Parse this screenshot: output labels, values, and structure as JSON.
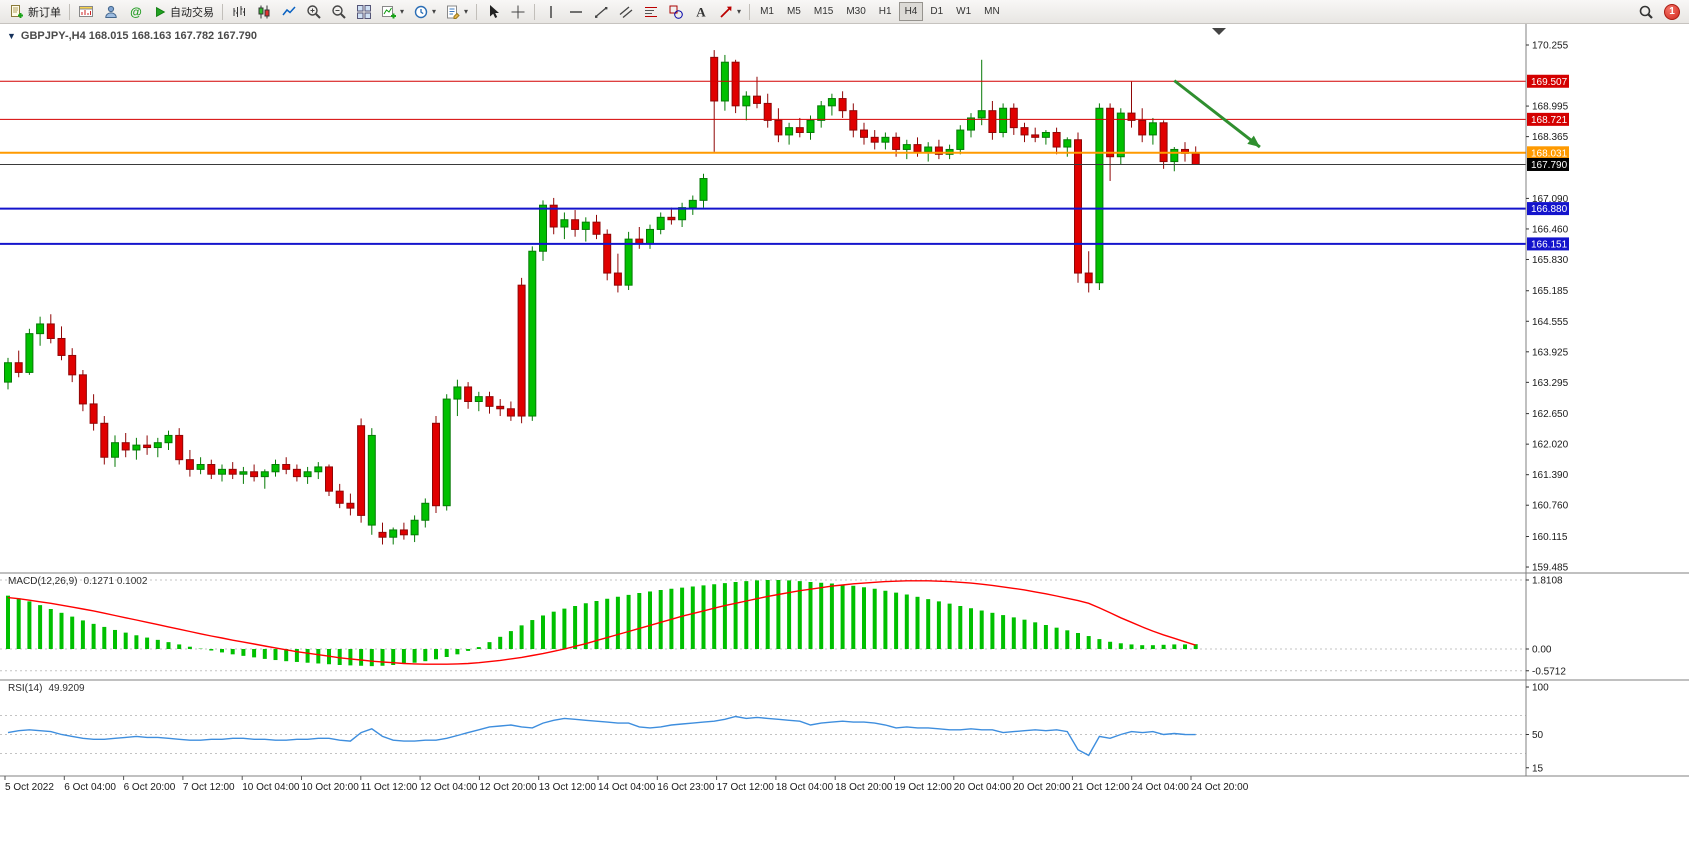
{
  "toolbar": {
    "new_order_label": "新订单",
    "autotrade_label": "自动交易",
    "timeframes": [
      "M1",
      "M5",
      "M15",
      "M30",
      "H1",
      "H4",
      "D1",
      "W1",
      "MN"
    ],
    "active_timeframe": "H4",
    "notification_count": "1"
  },
  "labels": {
    "symbol_line": "GBPJPY-,H4  168.015 168.163 167.782 167.790",
    "macd_name": "MACD(12,26,9)",
    "macd_values": "0.1271 0.1002",
    "rsi_name": "RSI(14)",
    "rsi_value": "49.9209"
  },
  "chart_data": [
    {
      "type": "candlestick",
      "symbol": "GBPJPY-",
      "timeframe": "H4",
      "current_ohlc": {
        "open": 168.015,
        "high": 168.163,
        "low": 167.782,
        "close": 167.79
      },
      "up_color": "#00C000",
      "up_border": "#067A06",
      "down_color": "#E00000",
      "down_border": "#8F0606",
      "y_axis_ticks": [
        "170.255",
        "168.995",
        "168.365",
        "167.090",
        "166.460",
        "165.830",
        "165.185",
        "164.555",
        "163.925",
        "163.295",
        "162.650",
        "162.020",
        "161.390",
        "160.760",
        "160.115",
        "159.485"
      ],
      "x_labels": [
        "5 Oct 2022",
        "6 Oct 04:00",
        "6 Oct 20:00",
        "7 Oct 12:00",
        "10 Oct 04:00",
        "10 Oct 20:00",
        "11 Oct 12:00",
        "12 Oct 04:00",
        "12 Oct 20:00",
        "13 Oct 12:00",
        "14 Oct 04:00",
        "16 Oct 23:00",
        "17 Oct 12:00",
        "18 Oct 04:00",
        "18 Oct 20:00",
        "19 Oct 12:00",
        "20 Oct 04:00",
        "20 Oct 20:00",
        "21 Oct 12:00",
        "24 Oct 04:00",
        "24 Oct 20:00"
      ],
      "hlines": [
        {
          "price": 169.507,
          "label": "169.507",
          "color": "#D40000",
          "width": 1
        },
        {
          "price": 168.721,
          "label": "168.721",
          "color": "#D40000",
          "width": 1
        },
        {
          "price": 168.031,
          "label": "168.031",
          "color": "#FF9A00",
          "width": 2
        },
        {
          "price": 166.88,
          "label": "166.880",
          "color": "#1414CC",
          "width": 2
        },
        {
          "price": 166.151,
          "label": "166.151",
          "color": "#1414CC",
          "width": 2
        }
      ],
      "bid_line": {
        "price": 167.79,
        "label": "167.790",
        "color": "#3A3A3A"
      },
      "annotation_arrow": {
        "from": {
          "index": 109,
          "price": 169.52
        },
        "to": {
          "index": 117,
          "price": 168.15
        },
        "color": "#2F8F2F"
      },
      "candles": [
        [
          163.3,
          163.8,
          163.15,
          163.7
        ],
        [
          163.7,
          163.95,
          163.4,
          163.5
        ],
        [
          163.5,
          164.4,
          163.45,
          164.3
        ],
        [
          164.3,
          164.65,
          164.05,
          164.5
        ],
        [
          164.5,
          164.7,
          164.1,
          164.2
        ],
        [
          164.2,
          164.45,
          163.75,
          163.85
        ],
        [
          163.85,
          164.0,
          163.3,
          163.45
        ],
        [
          163.45,
          163.55,
          162.7,
          162.85
        ],
        [
          162.85,
          163.05,
          162.3,
          162.45
        ],
        [
          162.45,
          162.6,
          161.6,
          161.75
        ],
        [
          161.75,
          162.2,
          161.55,
          162.05
        ],
        [
          162.05,
          162.25,
          161.75,
          161.9
        ],
        [
          161.9,
          162.15,
          161.7,
          162.0
        ],
        [
          162.0,
          162.2,
          161.8,
          161.95
        ],
        [
          161.95,
          162.15,
          161.75,
          162.05
        ],
        [
          162.05,
          162.3,
          161.9,
          162.2
        ],
        [
          162.2,
          162.35,
          161.6,
          161.7
        ],
        [
          161.7,
          161.9,
          161.35,
          161.5
        ],
        [
          161.5,
          161.75,
          161.4,
          161.6
        ],
        [
          161.6,
          161.7,
          161.3,
          161.4
        ],
        [
          161.4,
          161.6,
          161.25,
          161.5
        ],
        [
          161.5,
          161.65,
          161.3,
          161.4
        ],
        [
          161.4,
          161.55,
          161.2,
          161.45
        ],
        [
          161.45,
          161.6,
          161.25,
          161.35
        ],
        [
          161.35,
          161.5,
          161.1,
          161.45
        ],
        [
          161.45,
          161.7,
          161.35,
          161.6
        ],
        [
          161.6,
          161.75,
          161.4,
          161.5
        ],
        [
          161.5,
          161.6,
          161.25,
          161.35
        ],
        [
          161.35,
          161.55,
          161.2,
          161.45
        ],
        [
          161.45,
          161.65,
          161.3,
          161.55
        ],
        [
          161.55,
          161.6,
          160.95,
          161.05
        ],
        [
          161.05,
          161.2,
          160.7,
          160.8
        ],
        [
          160.8,
          161.0,
          160.55,
          160.7
        ],
        [
          162.4,
          162.55,
          160.4,
          160.55
        ],
        [
          160.35,
          162.35,
          160.15,
          162.2
        ],
        [
          160.2,
          160.4,
          159.95,
          160.1
        ],
        [
          160.1,
          160.3,
          159.95,
          160.25
        ],
        [
          160.25,
          160.4,
          160.05,
          160.15
        ],
        [
          160.15,
          160.55,
          160.0,
          160.45
        ],
        [
          160.45,
          160.9,
          160.3,
          160.8
        ],
        [
          162.45,
          162.6,
          160.6,
          160.75
        ],
        [
          160.75,
          163.05,
          160.65,
          162.95
        ],
        [
          162.95,
          163.35,
          162.6,
          163.2
        ],
        [
          163.2,
          163.3,
          162.75,
          162.9
        ],
        [
          162.9,
          163.1,
          162.7,
          163.0
        ],
        [
          163.0,
          163.1,
          162.65,
          162.8
        ],
        [
          162.8,
          162.95,
          162.6,
          162.75
        ],
        [
          162.75,
          162.9,
          162.5,
          162.6
        ],
        [
          165.3,
          165.45,
          162.45,
          162.6
        ],
        [
          162.6,
          166.1,
          162.5,
          166.0
        ],
        [
          166.0,
          167.05,
          165.8,
          166.95
        ],
        [
          166.95,
          167.1,
          166.35,
          166.5
        ],
        [
          166.5,
          166.8,
          166.25,
          166.65
        ],
        [
          166.65,
          166.85,
          166.3,
          166.45
        ],
        [
          166.45,
          166.7,
          166.2,
          166.6
        ],
        [
          166.6,
          166.75,
          166.25,
          166.35
        ],
        [
          166.35,
          166.45,
          165.4,
          165.55
        ],
        [
          165.55,
          165.95,
          165.15,
          165.3
        ],
        [
          165.3,
          166.4,
          165.2,
          166.25
        ],
        [
          166.25,
          166.5,
          166.05,
          166.15
        ],
        [
          166.15,
          166.55,
          166.05,
          166.45
        ],
        [
          166.45,
          166.8,
          166.35,
          166.7
        ],
        [
          166.7,
          166.9,
          166.55,
          166.65
        ],
        [
          166.65,
          167.0,
          166.5,
          166.9
        ],
        [
          166.9,
          167.15,
          166.75,
          167.05
        ],
        [
          167.05,
          167.6,
          166.9,
          167.5
        ],
        [
          170.0,
          170.15,
          168.05,
          169.1
        ],
        [
          169.1,
          170.05,
          168.9,
          169.9
        ],
        [
          169.9,
          169.95,
          168.85,
          169.0
        ],
        [
          169.0,
          169.3,
          168.7,
          169.2
        ],
        [
          169.2,
          169.6,
          168.95,
          169.05
        ],
        [
          169.05,
          169.25,
          168.55,
          168.7
        ],
        [
          168.7,
          168.95,
          168.25,
          168.4
        ],
        [
          168.4,
          168.65,
          168.2,
          168.55
        ],
        [
          168.55,
          168.75,
          168.35,
          168.45
        ],
        [
          168.45,
          168.8,
          168.3,
          168.7
        ],
        [
          168.7,
          169.1,
          168.55,
          169.0
        ],
        [
          169.0,
          169.25,
          168.8,
          169.15
        ],
        [
          169.15,
          169.3,
          168.75,
          168.9
        ],
        [
          168.9,
          169.05,
          168.35,
          168.5
        ],
        [
          168.5,
          168.65,
          168.2,
          168.35
        ],
        [
          168.35,
          168.5,
          168.1,
          168.25
        ],
        [
          168.25,
          168.45,
          168.1,
          168.35
        ],
        [
          168.35,
          168.45,
          167.95,
          168.1
        ],
        [
          168.1,
          168.3,
          167.9,
          168.2
        ],
        [
          168.2,
          168.35,
          167.95,
          168.05
        ],
        [
          168.05,
          168.25,
          167.85,
          168.15
        ],
        [
          168.15,
          168.3,
          167.9,
          168.0
        ],
        [
          168.0,
          168.2,
          167.9,
          168.1
        ],
        [
          168.1,
          168.6,
          168.0,
          168.5
        ],
        [
          168.5,
          168.85,
          168.35,
          168.75
        ],
        [
          168.75,
          169.95,
          168.6,
          168.9
        ],
        [
          168.9,
          169.1,
          168.3,
          168.45
        ],
        [
          168.45,
          169.05,
          168.35,
          168.95
        ],
        [
          168.95,
          169.05,
          168.4,
          168.55
        ],
        [
          168.55,
          168.65,
          168.25,
          168.4
        ],
        [
          168.4,
          168.55,
          168.25,
          168.35
        ],
        [
          168.35,
          168.5,
          168.2,
          168.45
        ],
        [
          168.45,
          168.55,
          168.0,
          168.15
        ],
        [
          168.15,
          168.35,
          167.95,
          168.3
        ],
        [
          168.3,
          168.45,
          165.35,
          165.55
        ],
        [
          165.55,
          166.0,
          165.15,
          165.35
        ],
        [
          165.35,
          169.05,
          165.2,
          168.95
        ],
        [
          168.95,
          169.05,
          167.45,
          167.95
        ],
        [
          167.95,
          168.95,
          167.8,
          168.85
        ],
        [
          168.85,
          169.5,
          168.55,
          168.7
        ],
        [
          168.7,
          168.95,
          168.25,
          168.4
        ],
        [
          168.4,
          168.75,
          168.2,
          168.65
        ],
        [
          168.65,
          168.7,
          167.7,
          167.85
        ],
        [
          167.85,
          168.15,
          167.65,
          168.1
        ],
        [
          168.1,
          168.25,
          167.85,
          168.02
        ],
        [
          168.015,
          168.163,
          167.782,
          167.79
        ]
      ]
    },
    {
      "type": "bar",
      "name": "MACD(12,26,9)",
      "main_value": 0.1271,
      "signal_value": 0.1002,
      "histogram_color": "#00C000",
      "signal_color": "#FF0000",
      "y_ticks": [
        1.8108,
        0,
        -0.5712
      ],
      "y_tick_labels": [
        "1.8108",
        "0.00",
        "-0.5712"
      ],
      "histogram": [
        1.4,
        1.33,
        1.25,
        1.15,
        1.05,
        0.95,
        0.85,
        0.75,
        0.66,
        0.58,
        0.5,
        0.43,
        0.36,
        0.3,
        0.24,
        0.18,
        0.12,
        0.06,
        0.01,
        -0.04,
        -0.09,
        -0.14,
        -0.18,
        -0.22,
        -0.26,
        -0.29,
        -0.32,
        -0.34,
        -0.36,
        -0.38,
        -0.4,
        -0.42,
        -0.43,
        -0.44,
        -0.45,
        -0.44,
        -0.42,
        -0.39,
        -0.36,
        -0.32,
        -0.27,
        -0.21,
        -0.14,
        -0.05,
        0.05,
        0.18,
        0.32,
        0.47,
        0.62,
        0.76,
        0.88,
        0.98,
        1.06,
        1.13,
        1.2,
        1.26,
        1.32,
        1.37,
        1.42,
        1.47,
        1.51,
        1.55,
        1.58,
        1.61,
        1.64,
        1.67,
        1.7,
        1.73,
        1.76,
        1.78,
        1.8,
        1.81,
        1.81,
        1.8,
        1.78,
        1.76,
        1.74,
        1.72,
        1.69,
        1.66,
        1.62,
        1.58,
        1.53,
        1.48,
        1.43,
        1.37,
        1.31,
        1.25,
        1.19,
        1.13,
        1.07,
        1.01,
        0.95,
        0.89,
        0.83,
        0.77,
        0.7,
        0.63,
        0.56,
        0.49,
        0.42,
        0.34,
        0.26,
        0.19,
        0.15,
        0.12,
        0.1,
        0.1,
        0.11,
        0.12,
        0.12,
        0.1271
      ],
      "signal": [
        1.35,
        1.32,
        1.28,
        1.24,
        1.2,
        1.15,
        1.1,
        1.05,
        1.0,
        0.94,
        0.88,
        0.82,
        0.76,
        0.7,
        0.64,
        0.58,
        0.52,
        0.46,
        0.4,
        0.34,
        0.29,
        0.23,
        0.18,
        0.13,
        0.08,
        0.03,
        -0.02,
        -0.07,
        -0.11,
        -0.15,
        -0.19,
        -0.23,
        -0.26,
        -0.29,
        -0.32,
        -0.34,
        -0.36,
        -0.38,
        -0.39,
        -0.4,
        -0.4,
        -0.4,
        -0.39,
        -0.38,
        -0.36,
        -0.33,
        -0.3,
        -0.26,
        -0.22,
        -0.17,
        -0.12,
        -0.06,
        0.0,
        0.07,
        0.14,
        0.22,
        0.3,
        0.38,
        0.46,
        0.54,
        0.62,
        0.7,
        0.78,
        0.86,
        0.93,
        1.0,
        1.07,
        1.14,
        1.2,
        1.26,
        1.32,
        1.38,
        1.43,
        1.48,
        1.53,
        1.57,
        1.61,
        1.65,
        1.68,
        1.71,
        1.73,
        1.75,
        1.77,
        1.78,
        1.79,
        1.79,
        1.79,
        1.78,
        1.77,
        1.75,
        1.73,
        1.7,
        1.67,
        1.63,
        1.59,
        1.55,
        1.5,
        1.45,
        1.39,
        1.33,
        1.27,
        1.2,
        1.08,
        0.95,
        0.82,
        0.7,
        0.58,
        0.47,
        0.37,
        0.28,
        0.19,
        0.1002
      ]
    },
    {
      "type": "line",
      "name": "RSI(14)",
      "last_value": 49.9209,
      "color": "#3E8EDE",
      "range": [
        0,
        100
      ],
      "y_ticks": [
        100,
        50,
        15
      ],
      "y_tick_labels": [
        "100",
        "50",
        "15"
      ],
      "levels": [
        70,
        50,
        30
      ],
      "values": [
        52,
        54,
        55,
        54,
        53,
        50,
        48,
        46,
        45,
        45,
        46,
        47,
        48,
        47,
        47,
        46,
        45,
        44,
        44,
        45,
        45,
        46,
        46,
        45,
        45,
        44,
        44,
        45,
        45,
        46,
        46,
        44,
        43,
        52,
        56,
        48,
        44,
        43,
        43,
        44,
        44,
        46,
        49,
        52,
        55,
        58,
        59,
        60,
        58,
        57,
        62,
        65,
        67,
        66,
        65,
        64,
        63,
        62,
        62,
        58,
        57,
        58,
        60,
        61,
        62,
        63,
        64,
        66,
        69,
        67,
        68,
        67,
        66,
        65,
        64,
        60,
        62,
        63,
        64,
        63,
        63,
        62,
        60,
        57,
        58,
        57,
        57,
        56,
        55,
        55,
        56,
        55,
        55,
        52,
        53,
        54,
        55,
        54,
        55,
        53,
        34,
        28,
        48,
        46,
        50,
        53,
        52,
        53,
        50,
        51,
        50,
        49.92
      ]
    }
  ]
}
